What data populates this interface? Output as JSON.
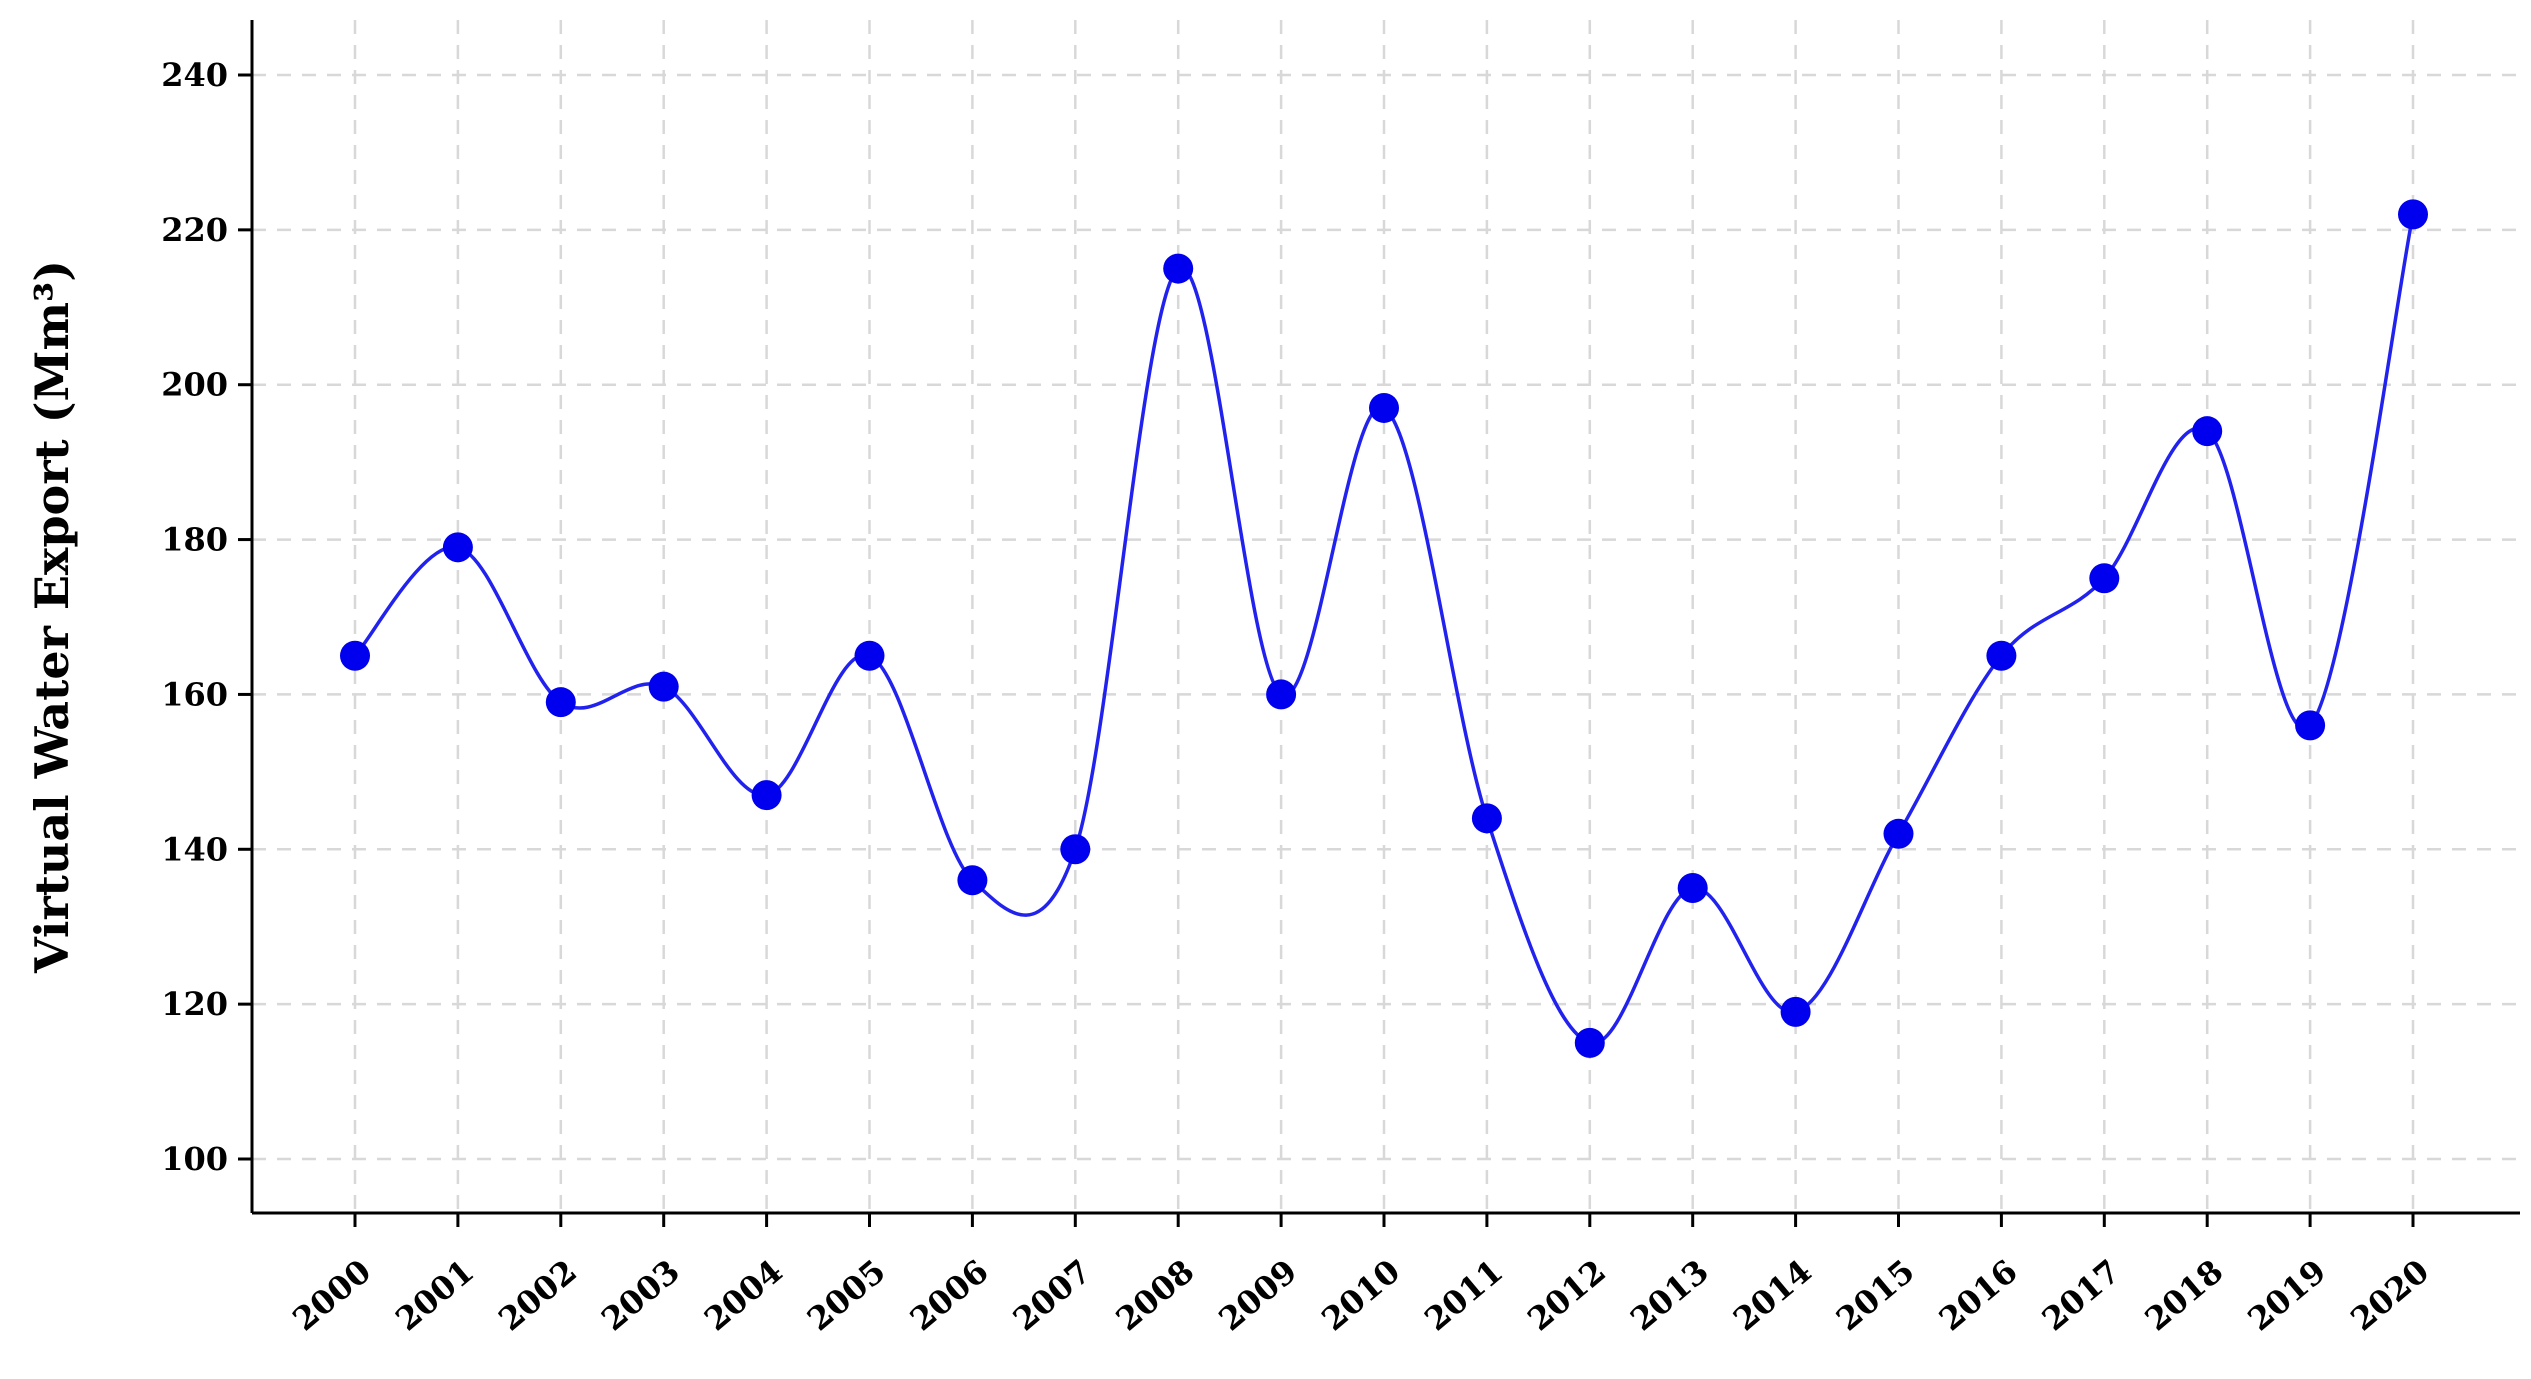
{
  "chart_data": {
    "type": "line",
    "title": "",
    "xlabel": "",
    "ylabel": "Virtual Water Export (Mm³)",
    "categories": [
      "2000",
      "2001",
      "2002",
      "2003",
      "2004",
      "2005",
      "2006",
      "2007",
      "2008",
      "2009",
      "2010",
      "2011",
      "2012",
      "2013",
      "2014",
      "2015",
      "2016",
      "2017",
      "2018",
      "2019",
      "2020"
    ],
    "series": [
      {
        "values": [
          165,
          179,
          159,
          161,
          147,
          165,
          136,
          140,
          215,
          160,
          197,
          144,
          115,
          135,
          119,
          142,
          165,
          175,
          194,
          156,
          222
        ]
      }
    ],
    "ylim": [
      100,
      240
    ],
    "yticks": [
      100,
      120,
      140,
      160,
      180,
      200,
      220,
      240
    ],
    "grid": true,
    "smooth": true,
    "colors": {
      "line": "#2222ee",
      "marker": "#0000ee",
      "grid": "#d8d8d8",
      "axis": "#000000"
    }
  }
}
